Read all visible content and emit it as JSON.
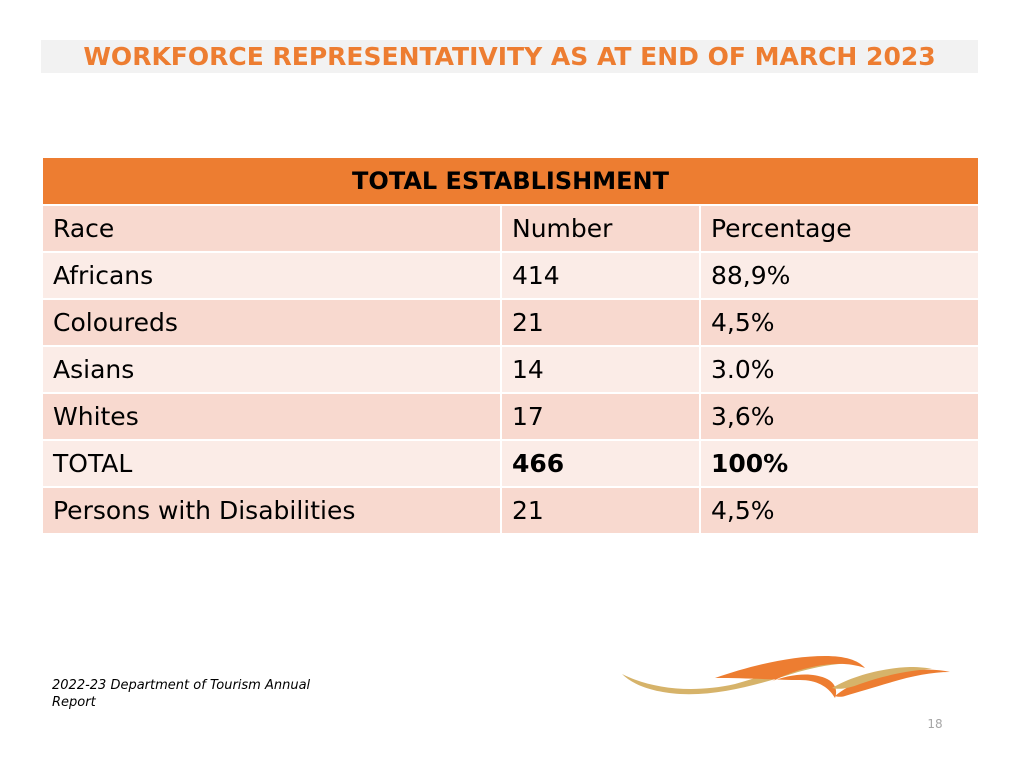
{
  "slide": {
    "title": "WORKFORCE REPRESENTATIVITY AS AT END OF MARCH 2023",
    "footer_note": "2022-23 Department of Tourism Annual Report",
    "page_number": "18"
  },
  "table": {
    "header": "TOTAL ESTABLISHMENT",
    "columns": [
      "Race",
      "Number",
      "Percentage"
    ],
    "rows": [
      {
        "race": "Africans",
        "number": "414",
        "percentage": "88,9%"
      },
      {
        "race": "Coloureds",
        "number": "21",
        "percentage": "4,5%"
      },
      {
        "race": "Asians",
        "number": "14",
        "percentage": "3.0%"
      },
      {
        "race": "Whites",
        "number": "17",
        "percentage": "3,6%"
      },
      {
        "race": "TOTAL",
        "number": "466",
        "percentage": "100%"
      },
      {
        "race": "Persons with Disabilities",
        "number": "21",
        "percentage": "4,5%"
      }
    ]
  },
  "colors": {
    "accent": "#ed7d31",
    "row_dark": "#f8d9cf",
    "row_light": "#fbece7",
    "logo_gold": "#d6b36a"
  },
  "icons": {
    "logo": "tourism-wave-logo"
  }
}
